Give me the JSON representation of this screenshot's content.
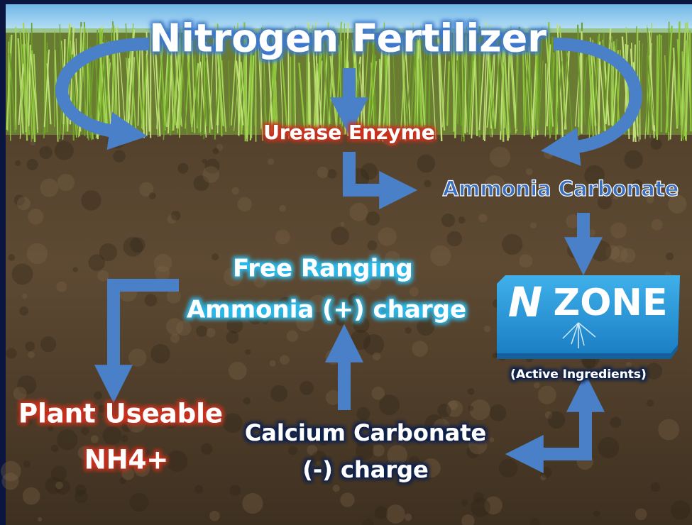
{
  "title": "Nitrogen Fertilizer",
  "nodes": [
    {
      "lines": [
        "Urease Enzyme"
      ]
    },
    {
      "lines": [
        "Ammonia Carbonate"
      ]
    },
    {
      "lines": [
        "Free Ranging",
        "Ammonia (+) charge"
      ]
    },
    {
      "lines": [
        "Plant Useable",
        "NH4+"
      ]
    },
    {
      "lines": [
        "Calcium Carbonate",
        "(-) charge"
      ]
    }
  ],
  "logo": {
    "mark": "N",
    "word": "ZONE",
    "caption": "(Active Ingredients)"
  }
}
